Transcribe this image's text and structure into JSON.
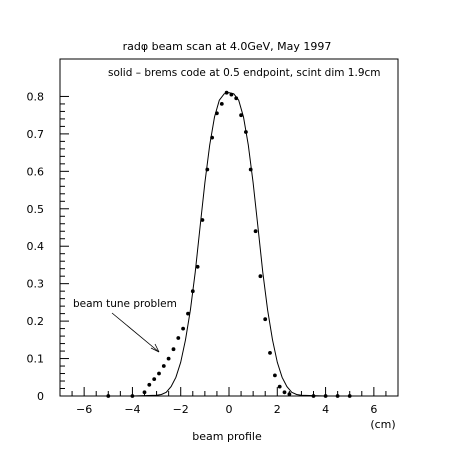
{
  "chart_data": {
    "type": "scatter",
    "title": "radφ beam scan at 4.0GeV, May 1997",
    "subtitle": "solid – brems code at 0.5 endpoint, scint dim 1.9cm",
    "xlabel": "beam profile",
    "xunit": "(cm)",
    "ylabel": "",
    "xlim": [
      -7,
      7
    ],
    "ylim": [
      0,
      0.9
    ],
    "xticks": [
      -6,
      -4,
      -2,
      0,
      2,
      4,
      6
    ],
    "yticks": [
      0,
      0.1,
      0.2,
      0.3,
      0.4,
      0.5,
      0.6,
      0.7,
      0.8
    ],
    "annotation": "beam tune problem",
    "series": [
      {
        "kind": "points",
        "x": [
          -5.0,
          -4.0,
          -3.5,
          -3.3,
          -3.1,
          -2.9,
          -2.7,
          -2.5,
          -2.3,
          -2.1,
          -1.9,
          -1.7,
          -1.5,
          -1.3,
          -1.1,
          -0.9,
          -0.7,
          -0.5,
          -0.3,
          -0.1,
          0.1,
          0.3,
          0.5,
          0.7,
          0.9,
          1.1,
          1.3,
          1.5,
          1.7,
          1.9,
          2.1,
          2.3,
          2.5,
          3.5,
          4.0,
          4.5,
          5.0
        ],
        "y": [
          0.0,
          0.0,
          0.01,
          0.03,
          0.045,
          0.06,
          0.08,
          0.1,
          0.125,
          0.155,
          0.18,
          0.22,
          0.28,
          0.345,
          0.47,
          0.605,
          0.69,
          0.755,
          0.78,
          0.81,
          0.805,
          0.795,
          0.75,
          0.705,
          0.605,
          0.44,
          0.32,
          0.205,
          0.115,
          0.055,
          0.025,
          0.01,
          0.005,
          0.0,
          0.0,
          0.0,
          0.0
        ]
      },
      {
        "kind": "line",
        "x": [
          -4.0,
          -3.5,
          -3.0,
          -2.8,
          -2.6,
          -2.4,
          -2.2,
          -2.0,
          -1.8,
          -1.6,
          -1.4,
          -1.2,
          -1.0,
          -0.8,
          -0.6,
          -0.4,
          -0.2,
          0.0,
          0.2,
          0.4,
          0.6,
          0.8,
          1.0,
          1.2,
          1.4,
          1.6,
          1.8,
          2.0,
          2.2,
          2.4,
          2.6,
          2.8,
          3.0,
          3.5,
          4.0
        ],
        "y": [
          0.0,
          0.001,
          0.002,
          0.004,
          0.01,
          0.025,
          0.05,
          0.09,
          0.15,
          0.23,
          0.33,
          0.45,
          0.57,
          0.67,
          0.745,
          0.79,
          0.807,
          0.81,
          0.807,
          0.79,
          0.745,
          0.67,
          0.57,
          0.45,
          0.33,
          0.23,
          0.15,
          0.09,
          0.05,
          0.025,
          0.01,
          0.004,
          0.002,
          0.001,
          0.0
        ]
      }
    ],
    "grid": false,
    "legend": "none"
  }
}
